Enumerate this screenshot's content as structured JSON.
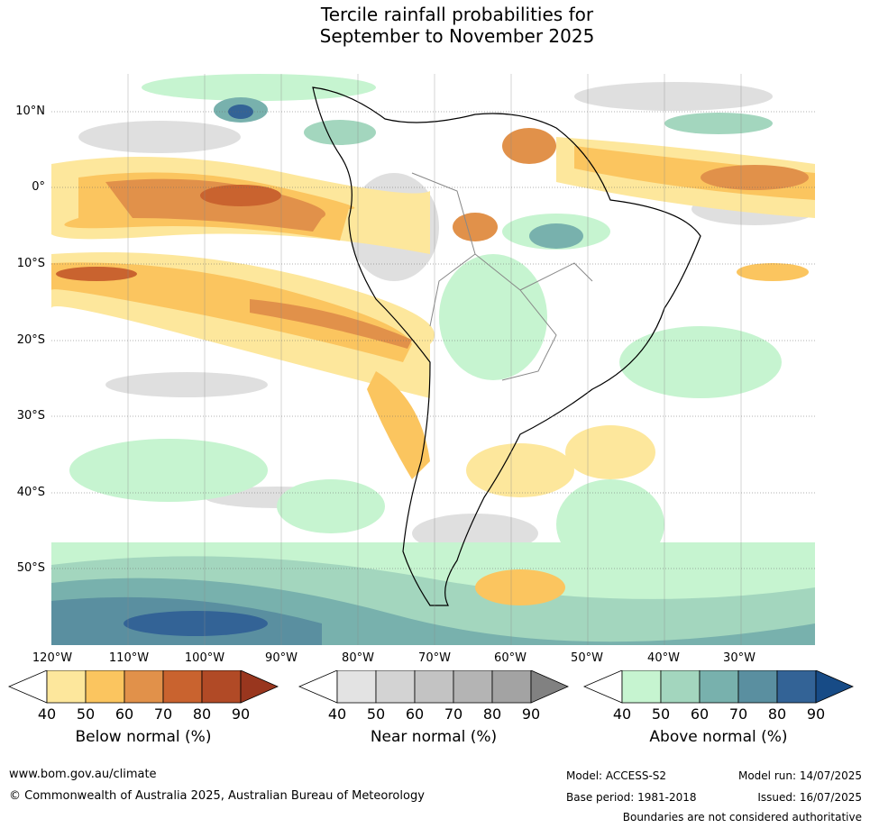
{
  "title": {
    "line1": "Tercile rainfall probabilities for",
    "line2": "September to November 2025"
  },
  "map": {
    "lat_labels": [
      "10°N",
      "0°",
      "10°S",
      "20°S",
      "30°S",
      "40°S",
      "50°S"
    ],
    "lon_labels": [
      "120°W",
      "110°W",
      "100°W",
      "90°W",
      "80°W",
      "70°W",
      "60°W",
      "50°W",
      "40°W",
      "30°W"
    ]
  },
  "colorbars": [
    {
      "title": "Below normal (%)",
      "ticks": [
        "40",
        "50",
        "60",
        "70",
        "80",
        "90"
      ],
      "colors": [
        "#ffffff",
        "#fde79c",
        "#fbc55f",
        "#e1914a",
        "#c9632f",
        "#b14a26",
        "#99361e"
      ]
    },
    {
      "title": "Near normal (%)",
      "ticks": [
        "40",
        "50",
        "60",
        "70",
        "80",
        "90"
      ],
      "colors": [
        "#ffffff",
        "#e3e3e3",
        "#d3d3d3",
        "#c3c3c3",
        "#b4b4b4",
        "#a3a3a3",
        "#818181"
      ]
    },
    {
      "title": "Above normal (%)",
      "ticks": [
        "40",
        "50",
        "60",
        "70",
        "80",
        "90"
      ],
      "colors": [
        "#ffffff",
        "#c6f4d0",
        "#a3d6be",
        "#78b1ad",
        "#5a8fa0",
        "#336396",
        "#174b86"
      ]
    }
  ],
  "footer": {
    "url": "www.bom.gov.au/climate",
    "copyright": "© Commonwealth of Australia 2025, Australian Bureau of Meteorology",
    "model": "Model: ACCESS-S2",
    "model_run": "Model run: 14/07/2025",
    "base_period": "Base period: 1981-2018",
    "issued": "Issued: 16/07/2025",
    "disclaimer": "Boundaries are not considered authoritative"
  }
}
